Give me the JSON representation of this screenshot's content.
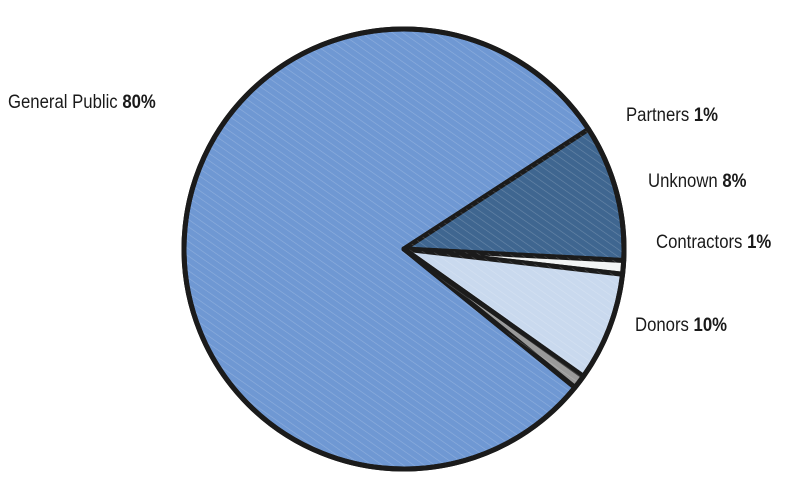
{
  "chart_data": {
    "type": "pie",
    "title": "",
    "slices": [
      {
        "label": "General Public",
        "value": 80,
        "value_label": "80%",
        "color": "#6f98d3"
      },
      {
        "label": "Donors",
        "value": 10,
        "value_label": "10%",
        "color": "#3f6690"
      },
      {
        "label": "Contractors",
        "value": 1,
        "value_label": "1%",
        "color": "#f2f4f4"
      },
      {
        "label": "Unknown",
        "value": 8,
        "value_label": "8%",
        "color": "#c9d9ee"
      },
      {
        "label": "Partners",
        "value": 1,
        "value_label": "1%",
        "color": "#9a9a9a"
      }
    ],
    "outline_color": "#1b1b1b"
  }
}
